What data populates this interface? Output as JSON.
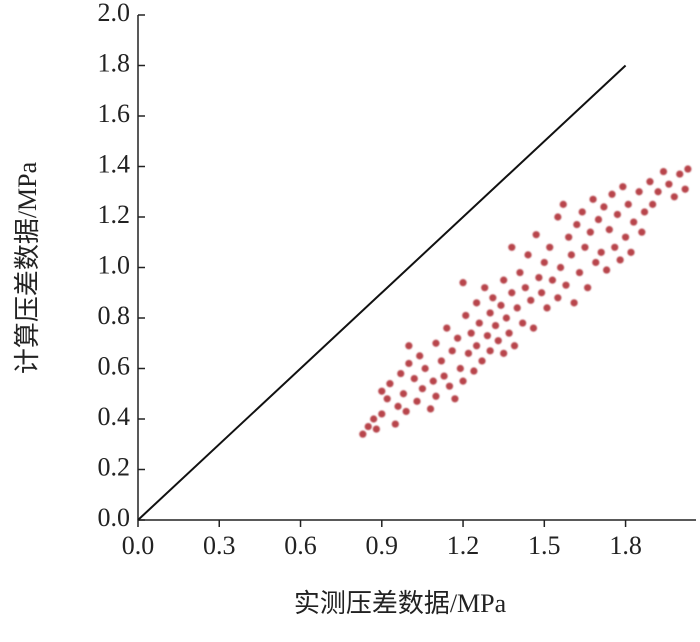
{
  "chart_data": {
    "type": "scatter",
    "xlabel": "实测压差数据/MPa",
    "ylabel": "计算压差数据/MPa",
    "xlim": [
      0,
      2.06
    ],
    "ylim": [
      0,
      2.0
    ],
    "xticks": [
      {
        "value": 0,
        "label": "0.0"
      },
      0.3,
      0.6,
      0.9,
      1.2,
      1.5,
      1.8
    ],
    "yticks": [
      {
        "value": 0,
        "label": "0.0"
      },
      0.2,
      0.4,
      0.6,
      0.8,
      {
        "value": 1,
        "label": "1.0"
      },
      1.2,
      1.4,
      1.6,
      1.8,
      {
        "value": 2,
        "label": "2.0"
      }
    ],
    "reference_line": {
      "x": [
        0,
        1.8
      ],
      "y": [
        0,
        1.8
      ],
      "color": "#111111"
    },
    "series": [
      {
        "color": "#b8454c",
        "x": [
          0.83,
          0.85,
          0.87,
          0.88,
          0.9,
          0.9,
          0.92,
          0.93,
          0.95,
          0.96,
          0.97,
          0.98,
          0.99,
          1.0,
          1.0,
          1.02,
          1.03,
          1.04,
          1.05,
          1.06,
          1.08,
          1.09,
          1.1,
          1.1,
          1.12,
          1.13,
          1.14,
          1.15,
          1.16,
          1.17,
          1.18,
          1.19,
          1.2,
          1.2,
          1.21,
          1.22,
          1.23,
          1.24,
          1.25,
          1.25,
          1.26,
          1.27,
          1.28,
          1.29,
          1.3,
          1.3,
          1.31,
          1.32,
          1.33,
          1.34,
          1.35,
          1.35,
          1.36,
          1.37,
          1.38,
          1.38,
          1.39,
          1.4,
          1.41,
          1.42,
          1.43,
          1.44,
          1.45,
          1.46,
          1.47,
          1.48,
          1.49,
          1.5,
          1.51,
          1.52,
          1.53,
          1.55,
          1.55,
          1.56,
          1.57,
          1.58,
          1.59,
          1.6,
          1.61,
          1.62,
          1.63,
          1.64,
          1.65,
          1.66,
          1.67,
          1.68,
          1.69,
          1.7,
          1.71,
          1.72,
          1.73,
          1.74,
          1.75,
          1.76,
          1.77,
          1.78,
          1.79,
          1.8,
          1.81,
          1.82,
          1.83,
          1.85,
          1.86,
          1.87,
          1.89,
          1.9,
          1.92,
          1.94,
          1.96,
          1.98,
          2.0,
          2.02,
          2.03
        ],
        "y": [
          0.34,
          0.37,
          0.4,
          0.36,
          0.42,
          0.51,
          0.48,
          0.54,
          0.38,
          0.45,
          0.58,
          0.5,
          0.43,
          0.62,
          0.69,
          0.56,
          0.47,
          0.65,
          0.52,
          0.6,
          0.44,
          0.55,
          0.7,
          0.49,
          0.63,
          0.57,
          0.76,
          0.53,
          0.67,
          0.48,
          0.72,
          0.6,
          0.94,
          0.55,
          0.81,
          0.66,
          0.74,
          0.59,
          0.86,
          0.69,
          0.78,
          0.63,
          0.92,
          0.73,
          0.82,
          0.67,
          0.88,
          0.77,
          0.71,
          0.85,
          0.95,
          0.66,
          0.8,
          0.74,
          0.9,
          1.08,
          0.69,
          0.84,
          0.98,
          0.78,
          0.92,
          1.05,
          0.87,
          0.76,
          1.13,
          0.96,
          0.9,
          1.02,
          0.84,
          1.08,
          0.95,
          1.2,
          0.88,
          1.0,
          1.25,
          0.93,
          1.12,
          1.05,
          0.86,
          1.17,
          0.98,
          1.22,
          1.08,
          0.92,
          1.14,
          1.27,
          1.02,
          1.19,
          1.06,
          1.24,
          0.99,
          1.15,
          1.29,
          1.08,
          1.21,
          1.03,
          1.32,
          1.12,
          1.25,
          1.06,
          1.18,
          1.3,
          1.14,
          1.22,
          1.34,
          1.25,
          1.3,
          1.38,
          1.33,
          1.28,
          1.37,
          1.31,
          1.39
        ]
      }
    ]
  }
}
